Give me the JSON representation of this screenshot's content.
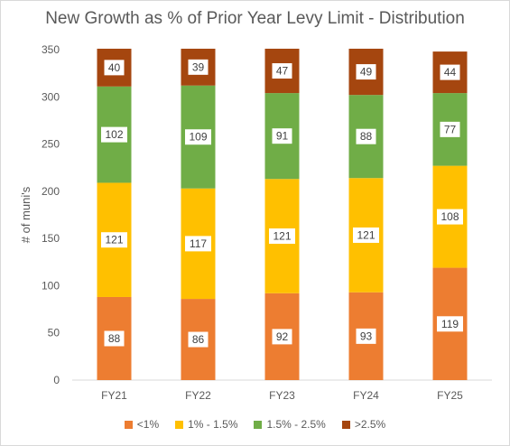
{
  "chart_data": {
    "type": "bar",
    "stacked": true,
    "title": "New Growth as % of Prior Year Levy Limit - Distribution",
    "ylabel": "# of muni's",
    "xlabel": "",
    "categories": [
      "FY21",
      "FY22",
      "FY23",
      "FY24",
      "FY25"
    ],
    "ylim": [
      0,
      350
    ],
    "yticks": [
      0,
      50,
      100,
      150,
      200,
      250,
      300,
      350
    ],
    "grid": false,
    "legend_position": "bottom",
    "series": [
      {
        "name": "<1%",
        "color": "#ED7D31",
        "values": [
          88,
          86,
          92,
          93,
          119
        ]
      },
      {
        "name": "1% - 1.5%",
        "color": "#FFC000",
        "values": [
          121,
          117,
          121,
          121,
          108
        ]
      },
      {
        "name": "1.5% - 2.5%",
        "color": "#70AD47",
        "values": [
          102,
          109,
          91,
          88,
          77
        ]
      },
      {
        "name": ">2.5%",
        "color": "#A5460F",
        "values": [
          40,
          39,
          47,
          49,
          44
        ]
      }
    ]
  }
}
